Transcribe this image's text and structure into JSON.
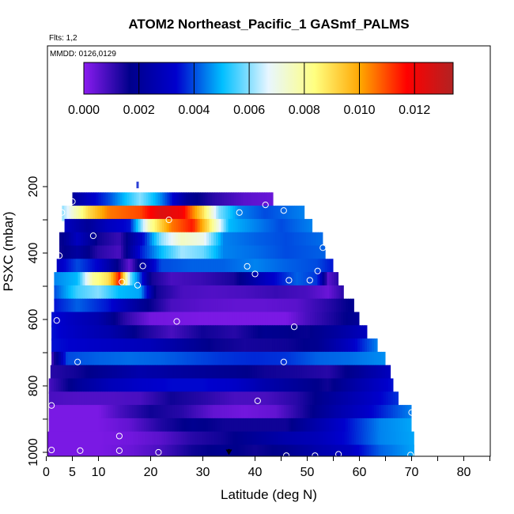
{
  "header": {
    "title": "ATOM2 Northeast_Pacific_1 GASmf_PALMS",
    "flights": "Flts: 1,2",
    "dates": "MMDD: 0126,0129"
  },
  "colors": {
    "stops": [
      "#8b1cf0",
      "#00008b",
      "#0000cd",
      "#00bfff",
      "#e8f6ff",
      "#ffff80",
      "#ffa500",
      "#ff0000",
      "#b22222"
    ],
    "circle": "#ffffff",
    "arrow": "#000000",
    "marker": "#2b3fd4"
  },
  "chart_data": {
    "type": "heatmap",
    "title": "ATOM2 Northeast_Pacific_1 GASmf_PALMS",
    "xlabel": "Latitude (deg N)",
    "ylabel": "PSXC (mbar)",
    "xlim": [
      0,
      85
    ],
    "ylim": [
      1000,
      100
    ],
    "x_ticks": [
      0,
      5,
      10,
      20,
      30,
      40,
      50,
      60,
      70,
      80
    ],
    "y_ticks": [
      200,
      400,
      600,
      800,
      1000
    ],
    "colorbar": {
      "min": 0.0,
      "max": 0.0134,
      "ticks": [
        "0.000",
        "0.002",
        "0.004",
        "0.006",
        "0.008",
        "0.010",
        "0.012"
      ]
    },
    "rows": [
      {
        "p": 240,
        "lo": 5,
        "hi": 43.5,
        "stops": [
          [
            5,
            0.002
          ],
          [
            8,
            0.003
          ],
          [
            12,
            0.004
          ],
          [
            18,
            0.006
          ],
          [
            22,
            0.0045
          ],
          [
            27,
            0.002
          ],
          [
            32,
            0.0012
          ],
          [
            38,
            0.0006
          ],
          [
            43.5,
            0.0004
          ]
        ]
      },
      {
        "p": 280,
        "lo": 3,
        "hi": 49.5,
        "stops": [
          [
            3,
            0.006
          ],
          [
            8,
            0.009
          ],
          [
            12,
            0.0105
          ],
          [
            18,
            0.011
          ],
          [
            22,
            0.0125
          ],
          [
            26,
            0.012
          ],
          [
            30,
            0.009
          ],
          [
            33,
            0.006
          ],
          [
            37,
            0.0045
          ],
          [
            42,
            0.004
          ],
          [
            49.5,
            0.0045
          ]
        ]
      },
      {
        "p": 320,
        "lo": 3.5,
        "hi": 51,
        "stops": [
          [
            3.5,
            0.003
          ],
          [
            8,
            0.002
          ],
          [
            12,
            0.003
          ],
          [
            16,
            0.0035
          ],
          [
            20,
            0.008
          ],
          [
            24,
            0.0105
          ],
          [
            28,
            0.0115
          ],
          [
            31,
            0.009
          ],
          [
            35,
            0.005
          ],
          [
            40,
            0.0045
          ],
          [
            45,
            0.004
          ],
          [
            51,
            0.0045
          ]
        ]
      },
      {
        "p": 360,
        "lo": 2.5,
        "hi": 53,
        "stops": [
          [
            2.5,
            0.0015
          ],
          [
            6,
            0.003
          ],
          [
            10,
            0.0015
          ],
          [
            14,
            0.001
          ],
          [
            18,
            0.003
          ],
          [
            22,
            0.006
          ],
          [
            26,
            0.0075
          ],
          [
            30,
            0.007
          ],
          [
            34,
            0.0045
          ],
          [
            40,
            0.0042
          ],
          [
            46,
            0.004
          ],
          [
            53,
            0.0043
          ]
        ]
      },
      {
        "p": 400,
        "lo": 2.5,
        "hi": 53.5,
        "stops": [
          [
            2.5,
            0.0015
          ],
          [
            6,
            0.0022
          ],
          [
            10,
            0.0012
          ],
          [
            14,
            0.0008
          ],
          [
            18,
            0.0035
          ],
          [
            22,
            0.005
          ],
          [
            26,
            0.0062
          ],
          [
            30,
            0.0058
          ],
          [
            34,
            0.0045
          ],
          [
            40,
            0.0043
          ],
          [
            46,
            0.004
          ],
          [
            53.5,
            0.0042
          ]
        ]
      },
      {
        "p": 440,
        "lo": 2,
        "hi": 55,
        "stops": [
          [
            2,
            0.003
          ],
          [
            6,
            0.004
          ],
          [
            10,
            0.0033
          ],
          [
            14,
            0.0015
          ],
          [
            16,
            0.0005
          ],
          [
            18,
            0.002
          ],
          [
            22,
            0.004
          ],
          [
            28,
            0.0042
          ],
          [
            34,
            0.0042
          ],
          [
            40,
            0.0045
          ],
          [
            46,
            0.0042
          ],
          [
            52,
            0.004
          ],
          [
            55,
            0.0035
          ]
        ]
      },
      {
        "p": 480,
        "lo": 1.5,
        "hi": 56,
        "stops": [
          [
            1.5,
            0.0045
          ],
          [
            6,
            0.005
          ],
          [
            9,
            0.008
          ],
          [
            12,
            0.009
          ],
          [
            14,
            0.0115
          ],
          [
            16,
            0.006
          ],
          [
            18,
            0.004
          ],
          [
            20,
            0.0015
          ],
          [
            24,
            0.0008
          ],
          [
            30,
            0.001
          ],
          [
            36,
            0.0014
          ],
          [
            42,
            0.003
          ],
          [
            48,
            0.0042
          ],
          [
            52,
            0.0038
          ],
          [
            54,
            0.0006
          ],
          [
            56,
            0.0012
          ]
        ]
      },
      {
        "p": 520,
        "lo": 1.5,
        "hi": 57,
        "stops": [
          [
            1.5,
            0.004
          ],
          [
            6,
            0.0055
          ],
          [
            10,
            0.006
          ],
          [
            14,
            0.005
          ],
          [
            18,
            0.0048
          ],
          [
            21,
            0.0015
          ],
          [
            26,
            0.0008
          ],
          [
            32,
            0.0007
          ],
          [
            38,
            0.0008
          ],
          [
            44,
            0.001
          ],
          [
            50,
            0.0008
          ],
          [
            54,
            0.0004
          ],
          [
            57,
            0.0012
          ]
        ]
      },
      {
        "p": 560,
        "lo": 1.5,
        "hi": 59,
        "stops": [
          [
            1.5,
            0.0035
          ],
          [
            6,
            0.0042
          ],
          [
            12,
            0.0035
          ],
          [
            18,
            0.002
          ],
          [
            24,
            0.0008
          ],
          [
            30,
            0.0006
          ],
          [
            36,
            0.0005
          ],
          [
            42,
            0.0005
          ],
          [
            48,
            0.0006
          ],
          [
            54,
            0.0012
          ],
          [
            59,
            0.0018
          ]
        ]
      },
      {
        "p": 600,
        "lo": 1,
        "hi": 60,
        "stops": [
          [
            1,
            0.0035
          ],
          [
            5,
            0.003
          ],
          [
            10,
            0.0025
          ],
          [
            15,
            0.0012
          ],
          [
            20,
            0.0003
          ],
          [
            30,
            0.0002
          ],
          [
            40,
            0.0002
          ],
          [
            46,
            0.0002
          ],
          [
            50,
            0.0008
          ],
          [
            56,
            0.0015
          ],
          [
            60,
            0.002
          ]
        ]
      },
      {
        "p": 640,
        "lo": 1,
        "hi": 61.5,
        "stops": [
          [
            1,
            0.0035
          ],
          [
            6,
            0.003
          ],
          [
            12,
            0.0025
          ],
          [
            18,
            0.0015
          ],
          [
            24,
            0.0008
          ],
          [
            30,
            0.0015
          ],
          [
            36,
            0.0012
          ],
          [
            42,
            0.0018
          ],
          [
            50,
            0.0016
          ],
          [
            56,
            0.0022
          ],
          [
            61.5,
            0.003
          ]
        ]
      },
      {
        "p": 680,
        "lo": 1,
        "hi": 63.5,
        "stops": [
          [
            1,
            0.0035
          ],
          [
            8,
            0.0032
          ],
          [
            14,
            0.003
          ],
          [
            20,
            0.0028
          ],
          [
            26,
            0.0022
          ],
          [
            32,
            0.0016
          ],
          [
            38,
            0.0014
          ],
          [
            46,
            0.0015
          ],
          [
            52,
            0.0018
          ],
          [
            58,
            0.003
          ],
          [
            63.5,
            0.0045
          ]
        ]
      },
      {
        "p": 720,
        "lo": 1,
        "hi": 65,
        "stops": [
          [
            1,
            0.0008
          ],
          [
            4,
            0.004
          ],
          [
            10,
            0.0042
          ],
          [
            16,
            0.0043
          ],
          [
            22,
            0.0042
          ],
          [
            28,
            0.004
          ],
          [
            34,
            0.0038
          ],
          [
            40,
            0.0037
          ],
          [
            46,
            0.0038
          ],
          [
            52,
            0.0042
          ],
          [
            58,
            0.0043
          ],
          [
            65,
            0.0046
          ]
        ]
      },
      {
        "p": 760,
        "lo": 0.8,
        "hi": 66,
        "stops": [
          [
            0.8,
            0.0012
          ],
          [
            6,
            0.0015
          ],
          [
            12,
            0.002
          ],
          [
            18,
            0.0025
          ],
          [
            24,
            0.0022
          ],
          [
            30,
            0.002
          ],
          [
            36,
            0.0018
          ],
          [
            42,
            0.0015
          ],
          [
            48,
            0.0014
          ],
          [
            54,
            0.0012
          ],
          [
            60,
            0.002
          ],
          [
            66,
            0.003
          ]
        ]
      },
      {
        "p": 800,
        "lo": 0.5,
        "hi": 66.5,
        "stops": [
          [
            0.5,
            0.0008
          ],
          [
            6,
            0.002
          ],
          [
            12,
            0.0028
          ],
          [
            18,
            0.0032
          ],
          [
            24,
            0.0034
          ],
          [
            30,
            0.0034
          ],
          [
            36,
            0.0032
          ],
          [
            42,
            0.0025
          ],
          [
            48,
            0.002
          ],
          [
            54,
            0.0015
          ],
          [
            60,
            0.0025
          ],
          [
            66.5,
            0.0035
          ]
        ]
      },
      {
        "p": 840,
        "lo": 0.5,
        "hi": 67.5,
        "stops": [
          [
            0.5,
            0.0008
          ],
          [
            6,
            0.0007
          ],
          [
            12,
            0.0007
          ],
          [
            18,
            0.0008
          ],
          [
            24,
            0.0015
          ],
          [
            30,
            0.0012
          ],
          [
            36,
            0.0008
          ],
          [
            42,
            0.0008
          ],
          [
            48,
            0.0012
          ],
          [
            54,
            0.002
          ],
          [
            60,
            0.0028
          ],
          [
            67.5,
            0.0038
          ]
        ]
      },
      {
        "p": 880,
        "lo": 0.5,
        "hi": 70,
        "stops": [
          [
            0.5,
            0.0002
          ],
          [
            6,
            0.0002
          ],
          [
            10,
            0.0002
          ],
          [
            14,
            0.0008
          ],
          [
            20,
            0.0015
          ],
          [
            26,
            0.0012
          ],
          [
            32,
            0.0005
          ],
          [
            38,
            0.0003
          ],
          [
            44,
            0.0005
          ],
          [
            50,
            0.0015
          ],
          [
            56,
            0.0025
          ],
          [
            62,
            0.0033
          ],
          [
            70,
            0.0045
          ]
        ]
      },
      {
        "p": 920,
        "lo": 0.5,
        "hi": 70,
        "stops": [
          [
            0.5,
            0.0002
          ],
          [
            10,
            0.0002
          ],
          [
            16,
            0.0005
          ],
          [
            22,
            0.0013
          ],
          [
            28,
            0.0018
          ],
          [
            34,
            0.0015
          ],
          [
            40,
            0.0015
          ],
          [
            46,
            0.0015
          ],
          [
            52,
            0.0025
          ],
          [
            58,
            0.0035
          ],
          [
            64,
            0.0045
          ],
          [
            70,
            0.0048
          ]
        ]
      },
      {
        "p": 960,
        "lo": 0.3,
        "hi": 70.5,
        "stops": [
          [
            0.3,
            0.0002
          ],
          [
            10,
            0.0002
          ],
          [
            16,
            0.0003
          ],
          [
            22,
            0.0006
          ],
          [
            28,
            0.0012
          ],
          [
            34,
            0.0015
          ],
          [
            40,
            0.002
          ],
          [
            46,
            0.0025
          ],
          [
            52,
            0.0028
          ],
          [
            58,
            0.0035
          ],
          [
            64,
            0.0045
          ],
          [
            70.5,
            0.0048
          ]
        ]
      },
      {
        "p": 1000,
        "lo": 0,
        "hi": 70.5,
        "stops": [
          [
            0,
            0.0002
          ],
          [
            10,
            0.0002
          ],
          [
            16,
            0.0004
          ],
          [
            22,
            0.0008
          ],
          [
            28,
            0.0015
          ],
          [
            34,
            0.0018
          ],
          [
            40,
            0.0015
          ],
          [
            46,
            0.0018
          ],
          [
            52,
            0.0025
          ],
          [
            58,
            0.003
          ],
          [
            64,
            0.0042
          ],
          [
            70.5,
            0.0048
          ]
        ]
      }
    ],
    "sample_points": [
      [
        5,
        245
      ],
      [
        3,
        278
      ],
      [
        23.5,
        300
      ],
      [
        42,
        255
      ],
      [
        45.5,
        272
      ],
      [
        37,
        278
      ],
      [
        9,
        348
      ],
      [
        53,
        384
      ],
      [
        2.5,
        408
      ],
      [
        18.5,
        439
      ],
      [
        52,
        454
      ],
      [
        38.5,
        440
      ],
      [
        14.5,
        487
      ],
      [
        17.5,
        497
      ],
      [
        40,
        463
      ],
      [
        46.5,
        482
      ],
      [
        50.5,
        482
      ],
      [
        2,
        603
      ],
      [
        25,
        606
      ],
      [
        47.5,
        622
      ],
      [
        6,
        728
      ],
      [
        45.5,
        728
      ],
      [
        1,
        859
      ],
      [
        40.5,
        845
      ],
      [
        70,
        880
      ],
      [
        14,
        951
      ],
      [
        1,
        993
      ],
      [
        6.5,
        995
      ],
      [
        14,
        995
      ],
      [
        21.5,
        1000
      ],
      [
        46,
        1010
      ],
      [
        51.5,
        1010
      ],
      [
        56,
        1006
      ],
      [
        69.8,
        1008
      ]
    ],
    "marker_top": {
      "lat": 17.5,
      "p": [
        185,
        205
      ]
    },
    "arrow": {
      "lat": 35,
      "p": [
        990,
        1006
      ]
    }
  }
}
